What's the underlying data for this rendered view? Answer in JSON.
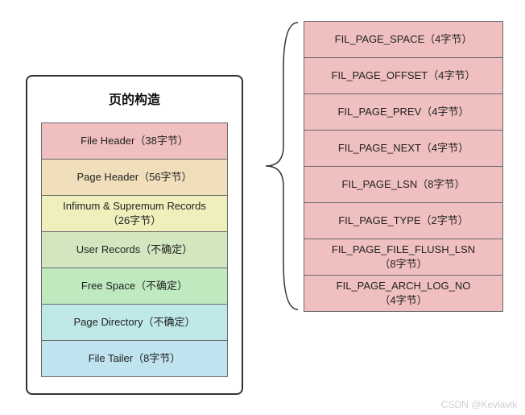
{
  "left": {
    "title": "页的构造",
    "rows": [
      {
        "label": "File Header（38字节）",
        "bg": "#efc0bf"
      },
      {
        "label": "Page Header（56字节）",
        "bg": "#f1dfbc"
      },
      {
        "label": "Infimum & Supremum Records\n（26字节）",
        "bg": "#efefbc"
      },
      {
        "label": "User Records（不确定）",
        "bg": "#d2e6c0"
      },
      {
        "label": "Free Space（不确定）",
        "bg": "#bfeabf"
      },
      {
        "label": "Page Directory（不确定）",
        "bg": "#bfe9e9"
      },
      {
        "label": "File Tailer（8字节）",
        "bg": "#bfe3ef"
      }
    ],
    "border_color": "#333333",
    "row_border": "#6a6a6a",
    "text_color": "#222222",
    "font_size": 13
  },
  "right": {
    "rows": [
      {
        "label": "FIL_PAGE_SPACE（4字节）"
      },
      {
        "label": "FIL_PAGE_OFFSET（4字节）"
      },
      {
        "label": "FIL_PAGE_PREV（4字节）"
      },
      {
        "label": "FIL_PAGE_NEXT（4字节）"
      },
      {
        "label": "FIL_PAGE_LSN（8字节）"
      },
      {
        "label": "FIL_PAGE_TYPE（2字节）"
      },
      {
        "label": "FIL_PAGE_FILE_FLUSH_LSN\n（8字节）"
      },
      {
        "label": "FIL_PAGE_ARCH_LOG_NO\n（4字节）"
      }
    ],
    "bg": "#efc0bf",
    "row_border": "#6a6a6a",
    "text_color": "#222222",
    "font_size": 13
  },
  "bracket": {
    "color": "#333333",
    "stroke_width": 1.5
  },
  "watermark": "CSDN @Kevlavik"
}
